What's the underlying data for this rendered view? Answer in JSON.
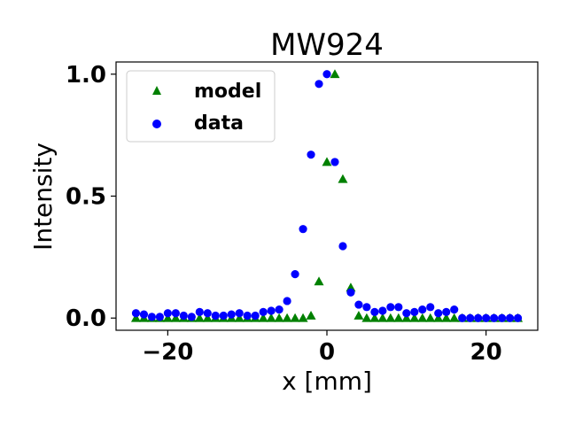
{
  "chart_data": {
    "type": "scatter",
    "title": "MW924",
    "xlabel": "x [mm]",
    "ylabel": "Intensity",
    "xlim": [
      -26.5,
      26.5
    ],
    "ylim": [
      -0.05,
      1.05
    ],
    "xticks": [
      -20,
      0,
      20
    ],
    "xtick_labels": [
      "−20",
      "0",
      "20"
    ],
    "yticks": [
      0.0,
      0.5,
      1.0
    ],
    "ytick_labels": [
      "0.0",
      "0.5",
      "1.0"
    ],
    "grid": false,
    "legend_position": "top-left",
    "series": [
      {
        "name": "model",
        "marker": "triangle",
        "color": "#008000",
        "x": [
          -24,
          -23,
          -22,
          -21,
          -20,
          -19,
          -18,
          -17,
          -16,
          -15,
          -14,
          -13,
          -12,
          -11,
          -10,
          -9,
          -8,
          -7,
          -6,
          -5,
          -4,
          -3,
          -2,
          -1,
          0,
          1,
          2,
          3,
          4,
          5,
          6,
          7,
          8,
          9,
          10,
          11,
          12,
          13,
          14,
          15,
          16,
          17,
          18,
          19,
          20,
          21,
          22,
          23,
          24
        ],
        "values": [
          0,
          0,
          0,
          0,
          0,
          0,
          0,
          0,
          0,
          0,
          0,
          0,
          0,
          0,
          0,
          0,
          0,
          0,
          0,
          0,
          0,
          0,
          0.01,
          0.15,
          0.64,
          1.0,
          0.57,
          0.125,
          0.01,
          0,
          0,
          0,
          0,
          0,
          0,
          0,
          0,
          0,
          0,
          0,
          0,
          0,
          0,
          0,
          0,
          0,
          0,
          0,
          0
        ]
      },
      {
        "name": "data",
        "marker": "circle",
        "color": "#0000ff",
        "x": [
          -24,
          -23,
          -22,
          -21,
          -20,
          -19,
          -18,
          -17,
          -16,
          -15,
          -14,
          -13,
          -12,
          -11,
          -10,
          -9,
          -8,
          -7,
          -6,
          -5,
          -4,
          -3,
          -2,
          -1,
          0,
          1,
          2,
          3,
          4,
          5,
          6,
          7,
          8,
          9,
          10,
          11,
          12,
          13,
          14,
          15,
          16,
          17,
          18,
          19,
          20,
          21,
          22,
          23,
          24
        ],
        "values": [
          0.02,
          0.015,
          0.005,
          0.005,
          0.02,
          0.02,
          0.01,
          0.005,
          0.025,
          0.02,
          0.01,
          0.01,
          0.015,
          0.02,
          0.01,
          0.01,
          0.025,
          0.03,
          0.035,
          0.07,
          0.18,
          0.365,
          0.67,
          0.96,
          1.0,
          0.64,
          0.295,
          0.105,
          0.055,
          0.045,
          0.025,
          0.03,
          0.045,
          0.045,
          0.02,
          0.025,
          0.035,
          0.045,
          0.02,
          0.025,
          0.035,
          0.0,
          0.0,
          0.0,
          0.0,
          0.0,
          0.0,
          0.0,
          0.0
        ]
      }
    ]
  }
}
